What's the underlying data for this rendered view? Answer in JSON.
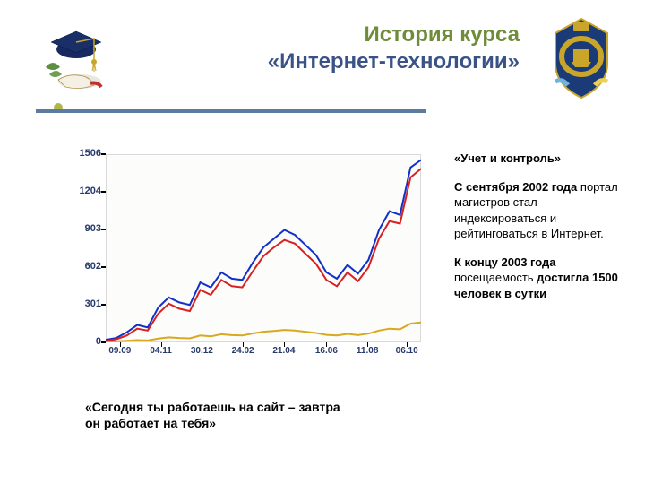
{
  "title": {
    "line1": "История курса",
    "line2": "«Интернет-технологии»",
    "line1_color": "#6f8c3b",
    "line2_color": "#3a5387"
  },
  "hr_color": "#5d7aa0",
  "dot_color": "#b0b74a",
  "right": {
    "h": "«Учет и контроль»",
    "p1_b": "С сентября 2002 года",
    "p1_r": " портал магистров стал индексироваться и рейтинговаться в Интернет.",
    "p2_b1": "К концу 2003 года",
    "p2_r1": " посещаемость ",
    "p2_b2": "достигла 1500 человек в сутки"
  },
  "quote": "«Сегодня ты работаешь на сайт – завтра он работает на тебя»",
  "chart": {
    "type": "line",
    "background_color": "#fcfcfa",
    "border_color": "#dadada",
    "axis_color": "#000000",
    "ylabel_color": "#263a6a",
    "ylim": [
      0,
      1506
    ],
    "ytick_labels": [
      "0",
      "301",
      "602",
      "903",
      "1204",
      "1506"
    ],
    "ytick_vals": [
      0,
      301,
      602,
      903,
      1204,
      1506
    ],
    "xtick_labels": [
      "09.09",
      "04.11",
      "30.12",
      "24.02",
      "21.04",
      "16.06",
      "11.08",
      "06.10"
    ],
    "xtick_pos": [
      0.045,
      0.175,
      0.305,
      0.435,
      0.565,
      0.7,
      0.83,
      0.955
    ],
    "series": [
      {
        "name": "series-blue",
        "color": "#1030c8",
        "width": 2,
        "y": [
          20,
          35,
          80,
          140,
          120,
          280,
          360,
          320,
          300,
          480,
          440,
          560,
          510,
          500,
          640,
          760,
          830,
          900,
          860,
          780,
          700,
          560,
          510,
          620,
          550,
          660,
          900,
          1050,
          1020,
          1400,
          1460
        ]
      },
      {
        "name": "series-red",
        "color": "#d82020",
        "width": 2,
        "y": [
          10,
          25,
          55,
          110,
          95,
          230,
          310,
          270,
          250,
          420,
          380,
          500,
          450,
          440,
          570,
          690,
          760,
          820,
          790,
          710,
          630,
          500,
          450,
          560,
          490,
          600,
          830,
          970,
          950,
          1320,
          1390
        ]
      },
      {
        "name": "series-yellow",
        "color": "#d8a820",
        "width": 2,
        "y": [
          5,
          8,
          12,
          18,
          15,
          30,
          40,
          35,
          32,
          55,
          48,
          65,
          58,
          55,
          72,
          85,
          92,
          100,
          95,
          85,
          75,
          60,
          55,
          68,
          58,
          70,
          95,
          110,
          105,
          150,
          160
        ]
      }
    ]
  },
  "grad_cap": {
    "cap_color": "#182860",
    "tassel_color": "#c9a62a",
    "ribbon_color": "#c03030",
    "leaf_color": "#5a9040"
  },
  "badge": {
    "shield_color": "#1a3a78",
    "gold": "#c9a62a",
    "accent_blue": "#6fb4e0",
    "accent_yellow": "#f0d050"
  }
}
